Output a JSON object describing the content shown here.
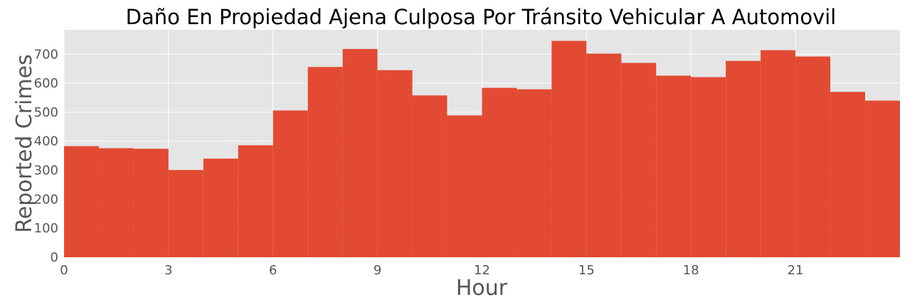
{
  "chart_data": {
    "type": "bar",
    "title": "Daño En Propiedad Ajena Culposa Por Tránsito Vehicular A Automovil",
    "xlabel": "Hour",
    "ylabel": "Reported Crimes",
    "x": [
      0,
      1,
      2,
      3,
      4,
      5,
      6,
      7,
      8,
      9,
      10,
      11,
      12,
      13,
      14,
      15,
      16,
      17,
      18,
      19,
      20,
      21,
      22,
      23
    ],
    "values": [
      383,
      376,
      374,
      301,
      340,
      386,
      506,
      656,
      718,
      645,
      558,
      489,
      584,
      579,
      746,
      702,
      670,
      626,
      621,
      677,
      714,
      692,
      570,
      540
    ],
    "xlim": [
      0,
      24
    ],
    "ylim": [
      0,
      784
    ],
    "xticks": [
      0,
      3,
      6,
      9,
      12,
      15,
      18,
      21
    ],
    "yticks": [
      0,
      100,
      200,
      300,
      400,
      500,
      600,
      700
    ],
    "grid": true,
    "bar_color": "#E24A33",
    "background_color": "#E5E5E5"
  }
}
